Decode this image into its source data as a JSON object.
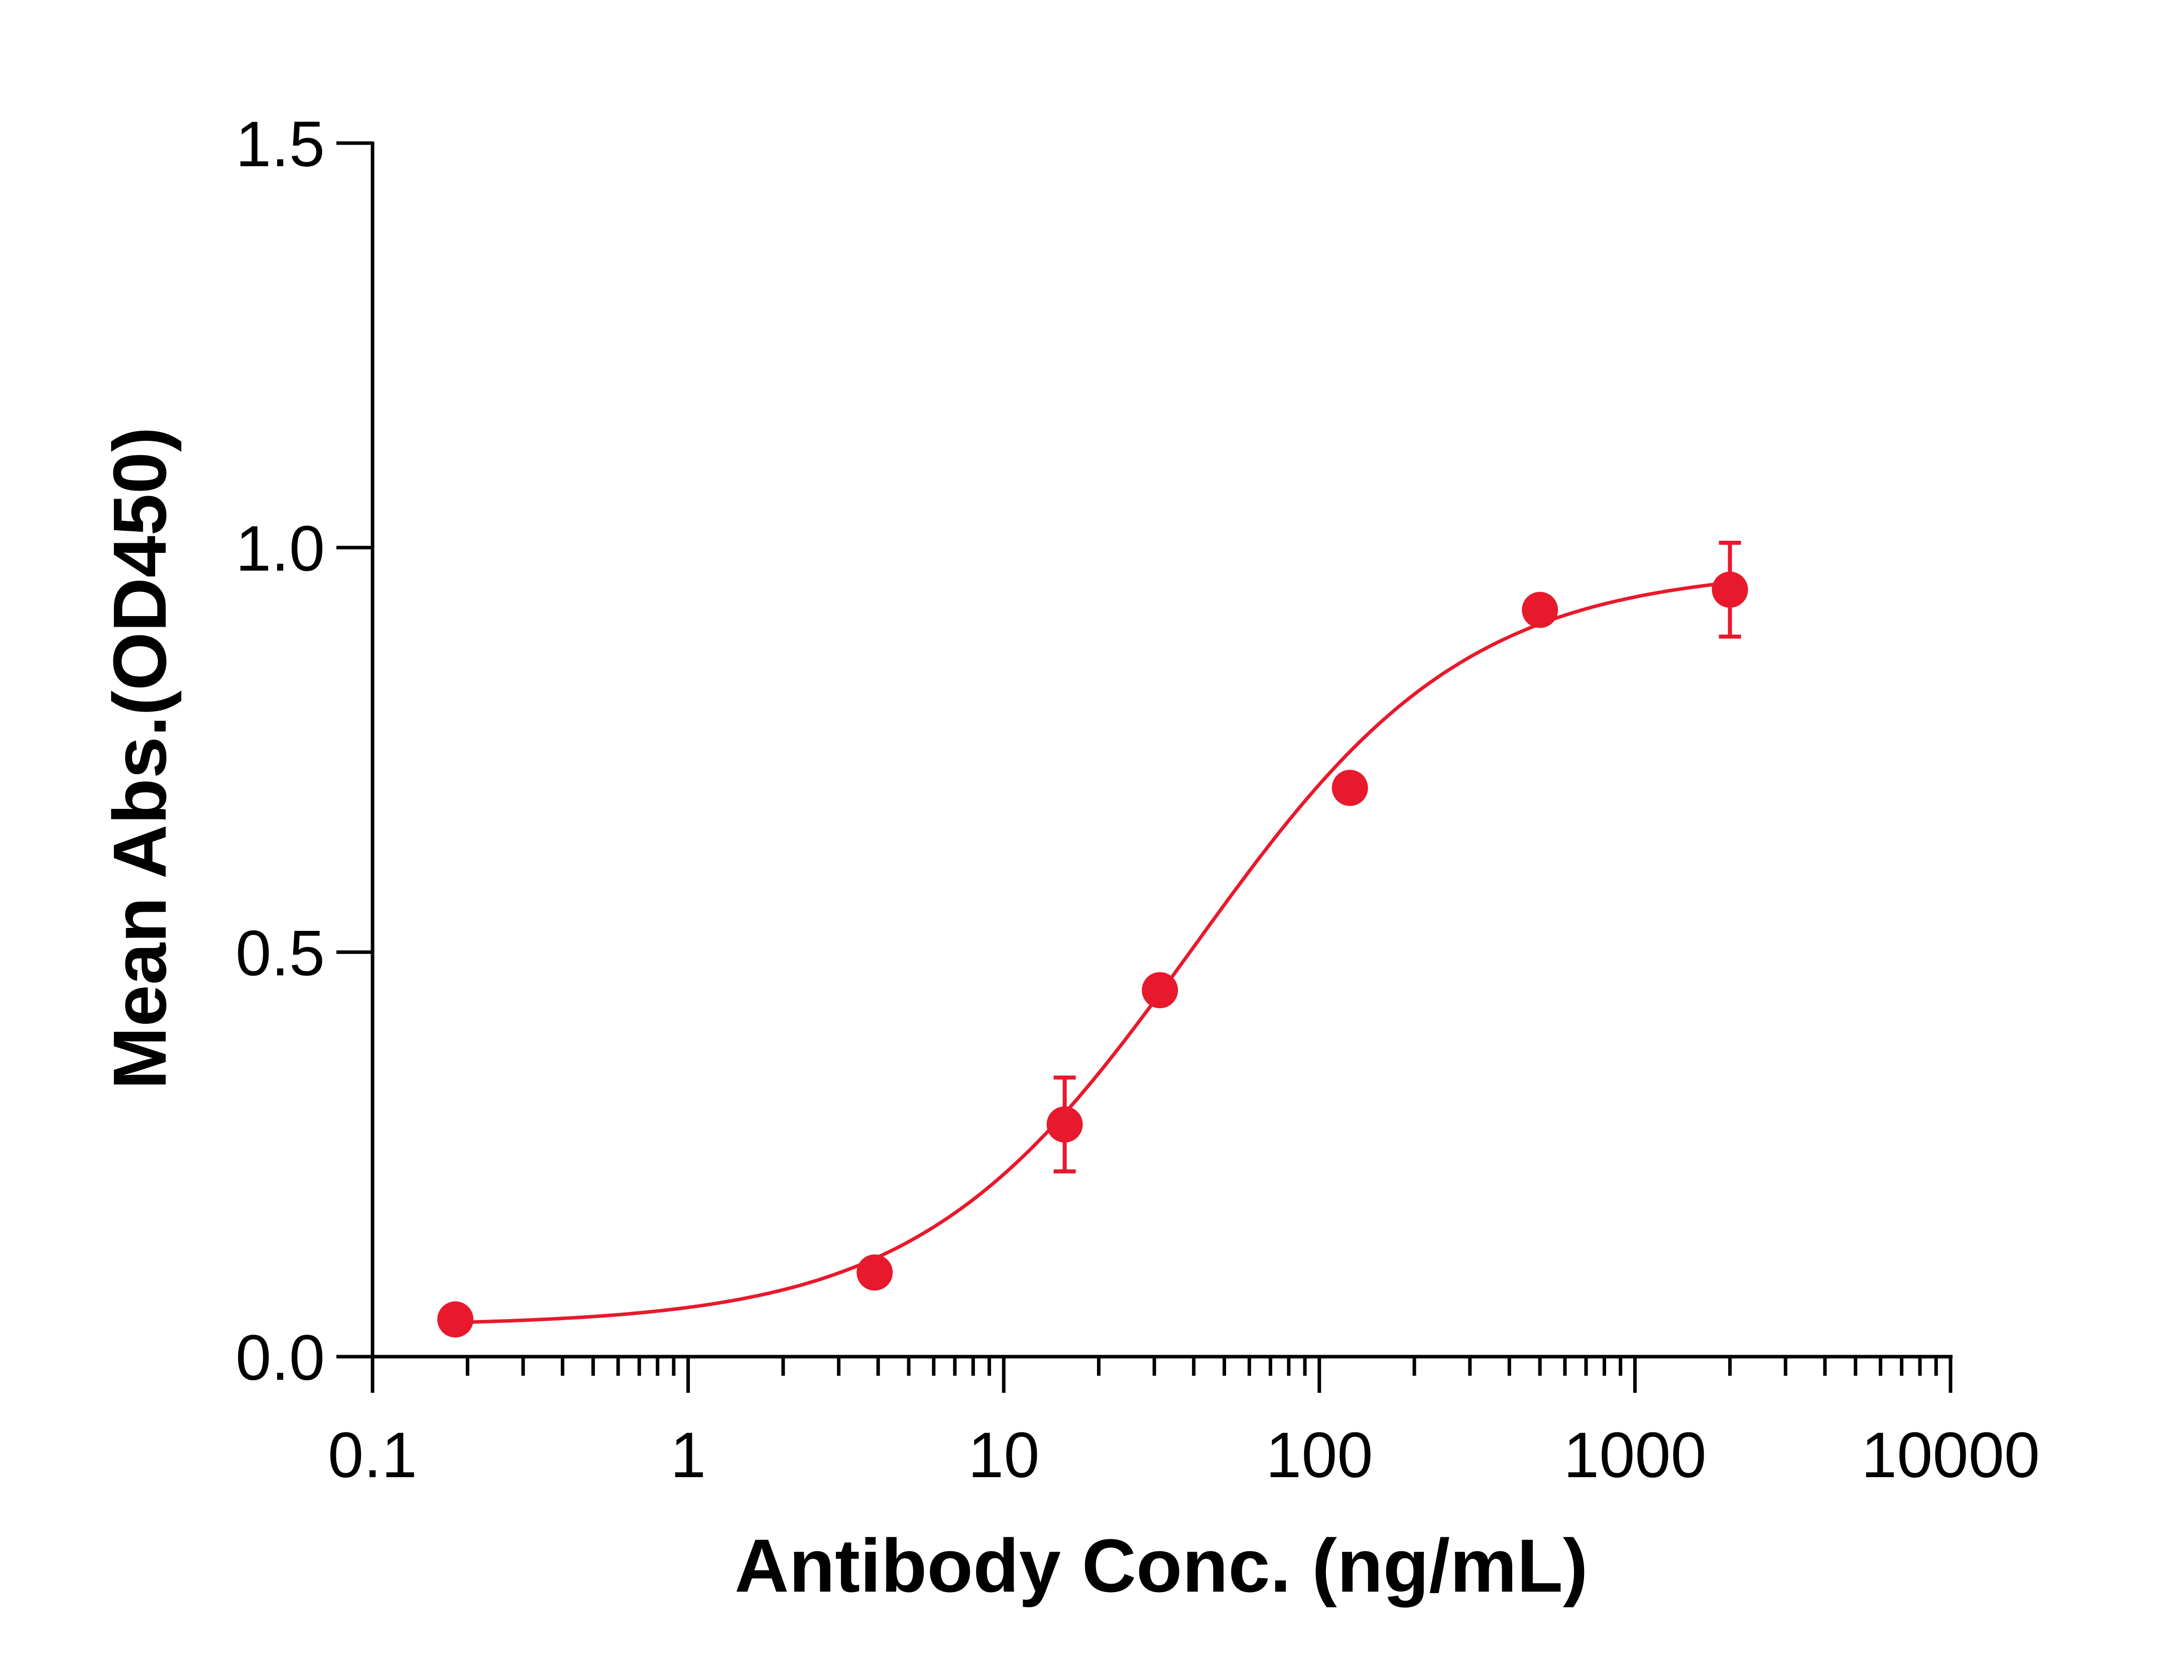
{
  "chart_data": {
    "type": "scatter",
    "title": "",
    "xlabel": "Antibody Conc. (ng/mL)",
    "ylabel": "Mean Abs.(OD450)",
    "x_scale": "log",
    "xlim": [
      0.1,
      10000
    ],
    "ylim": [
      0,
      1.5
    ],
    "x_ticks": [
      0.1,
      1,
      10,
      100,
      1000,
      10000
    ],
    "x_tick_labels": [
      "0.1",
      "1",
      "10",
      "100",
      "1000",
      "10000"
    ],
    "y_ticks": [
      0,
      0.5,
      1.0,
      1.5
    ],
    "y_tick_labels": [
      "0.0",
      "0.5",
      "1.0",
      "1.5"
    ],
    "grid": false,
    "legend": "none",
    "series": [
      {
        "color": "#e8192c",
        "marker": "circle",
        "points": [
          {
            "x": 0.183,
            "y": 0.046,
            "err": 0
          },
          {
            "x": 3.9,
            "y": 0.104,
            "err": 0
          },
          {
            "x": 15.6,
            "y": 0.287,
            "err": 0.058
          },
          {
            "x": 31.25,
            "y": 0.453,
            "err": 0
          },
          {
            "x": 125,
            "y": 0.703,
            "err": 0
          },
          {
            "x": 500,
            "y": 0.923,
            "err": 0
          },
          {
            "x": 2000,
            "y": 0.948,
            "err": 0.058
          }
        ],
        "fit": {
          "model": "4PL",
          "bottom": 0.038,
          "top": 0.975,
          "ec50": 40,
          "hill": 1.0
        }
      }
    ]
  }
}
